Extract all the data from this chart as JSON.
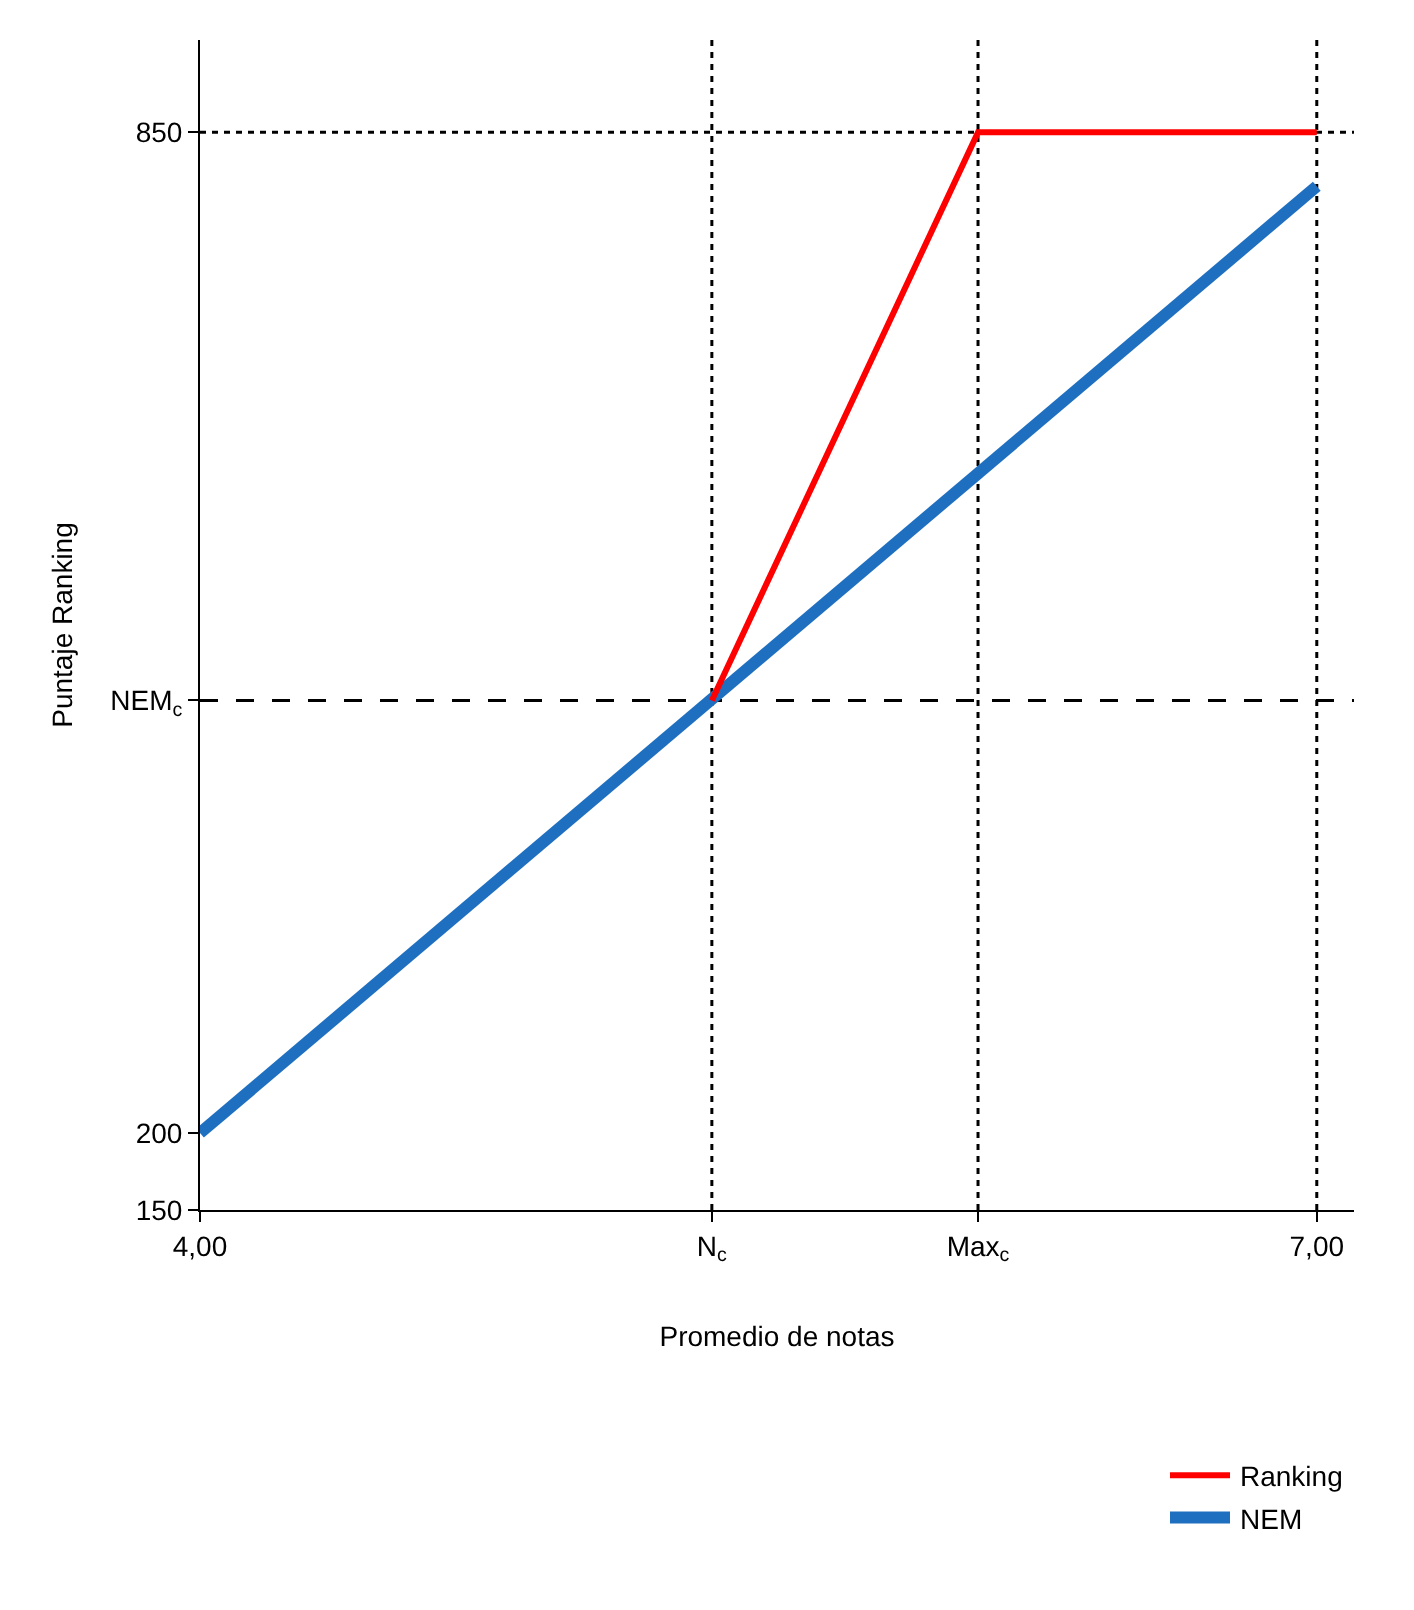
{
  "chart_data": {
    "type": "line",
    "xlabel": "Promedio de notas",
    "ylabel": "Puntaje Ranking",
    "series": [
      {
        "name": "Ranking",
        "color": "#ff0000",
        "x": [
          5.375,
          6.09,
          7
        ],
        "values": [
          481,
          850,
          850
        ]
      },
      {
        "name": "NEM",
        "color": "#1f6fc0",
        "x": [
          4,
          7
        ],
        "values": [
          200,
          815
        ]
      }
    ],
    "xlim": [
      4,
      7.1
    ],
    "ylim": [
      150,
      910
    ],
    "xticks": [
      {
        "value": 4,
        "label": "4,00"
      },
      {
        "value": 5.375,
        "label": "N$_{c}$"
      },
      {
        "value": 6.09,
        "label": "Max$_{c}$"
      },
      {
        "value": 7,
        "label": "7,00"
      }
    ],
    "yticks": [
      150,
      200,
      {
        "value": 481,
        "label": "NEM$_{c}$"
      },
      850
    ],
    "ref_lines": [
      {
        "axis": "y",
        "value": 850,
        "color": "#000000",
        "line_style": "dotted"
      },
      {
        "axis": "y",
        "value": 481,
        "color": "#000000",
        "line_style": "dashed"
      },
      {
        "axis": "x",
        "value": 5.375,
        "color": "#000000",
        "line_style": "dotted"
      },
      {
        "axis": "x",
        "value": 6.09,
        "color": "#000000",
        "line_style": "dotted"
      },
      {
        "axis": "x",
        "value": 7,
        "color": "#000000",
        "line_style": "dotted"
      }
    ],
    "legend": "bottom right",
    "grid": false,
    "marker": "none",
    "line_style": "solid"
  }
}
